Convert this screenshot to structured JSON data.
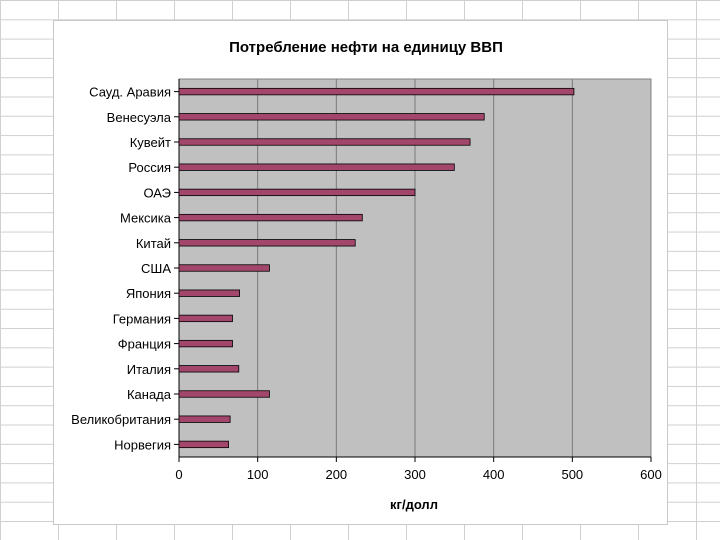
{
  "chart_data": {
    "type": "bar",
    "orientation": "horizontal",
    "title": "Потребление нефти на единицу ВВП",
    "xlabel": "кг/долл",
    "ylabel": "",
    "xlim": [
      0,
      600
    ],
    "xticks": [
      0,
      100,
      200,
      300,
      400,
      500,
      600
    ],
    "grid": true,
    "legend": "none",
    "categories": [
      "Сауд. Аравия",
      "Венесуэла",
      "Кувейт",
      "Россия",
      "ОАЭ",
      "Мексика",
      "Китай",
      "США",
      "Япония",
      "Германия",
      "Франция",
      "Италия",
      "Канада",
      "Великобритания",
      "Норвегия"
    ],
    "values": [
      502,
      388,
      370,
      350,
      300,
      233,
      224,
      115,
      77,
      68,
      68,
      76,
      115,
      65,
      63
    ],
    "colors": {
      "bar": "#a3466c",
      "plot_bg": "#c0c0c0",
      "gridline": "#7a7a7a"
    }
  }
}
